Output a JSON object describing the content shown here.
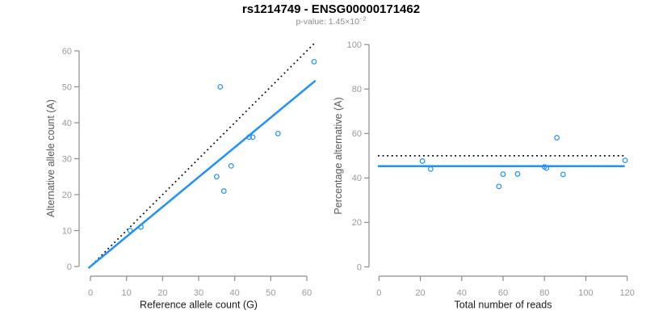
{
  "page": {
    "title": "rs1214749 - ENSG00000171462",
    "subtitle_prefix": "p-value: ",
    "p_mantissa": "1.45",
    "p_times": "×",
    "p_base": "10",
    "p_exponent": "−2"
  },
  "colors": {
    "accent": "#1E90FF",
    "line_black": "#000000",
    "axis": "#8c8c8c",
    "tick_label": "#999999",
    "axis_title_x": "#1a1a1a",
    "axis_title_y": "#595959",
    "subtitle": "#8c8c8c",
    "title": "#000000"
  },
  "chart_data": [
    {
      "type": "scatter",
      "title": "",
      "xlabel": "Reference allele count (G)",
      "ylabel": "Alternative allele count (A)",
      "xlim": [
        0,
        62
      ],
      "ylim": [
        0,
        62
      ],
      "xticks": [
        0,
        10,
        20,
        30,
        40,
        50,
        60
      ],
      "yticks": [
        0,
        10,
        20,
        30,
        40,
        50,
        60
      ],
      "grid": false,
      "legend": false,
      "points": [
        [
          11,
          10
        ],
        [
          14,
          11
        ],
        [
          35,
          25
        ],
        [
          36,
          50
        ],
        [
          37,
          21
        ],
        [
          39,
          28
        ],
        [
          44,
          36
        ],
        [
          45,
          36
        ],
        [
          52,
          37
        ],
        [
          62,
          57
        ]
      ],
      "lines": [
        {
          "name": "identity-line",
          "style": "dotted",
          "color": "#000000",
          "slope": 1,
          "intercept": 0,
          "x_range": [
            -0.5,
            62.4
          ]
        },
        {
          "name": "fit-line",
          "style": "solid",
          "color": "#1E90FF",
          "slope": 0.829,
          "intercept": 0,
          "x_range": [
            -0.5,
            62.4
          ]
        }
      ]
    },
    {
      "type": "scatter",
      "title": "",
      "xlabel": "Total number of reads",
      "ylabel": "Percentage alternative (A)",
      "xlim": [
        0,
        120
      ],
      "ylim": [
        0,
        100
      ],
      "xticks": [
        0,
        20,
        40,
        60,
        80,
        100,
        120
      ],
      "yticks": [
        0,
        20,
        40,
        60,
        80,
        100
      ],
      "grid": false,
      "legend": false,
      "points": [
        [
          21,
          47.6
        ],
        [
          25,
          44.0
        ],
        [
          58,
          36.2
        ],
        [
          60,
          41.7
        ],
        [
          67,
          41.8
        ],
        [
          80,
          45.0
        ],
        [
          81,
          44.4
        ],
        [
          86,
          58.1
        ],
        [
          89,
          41.6
        ],
        [
          119,
          47.9
        ]
      ],
      "lines": [
        {
          "name": "expected-50-line",
          "style": "dotted",
          "color": "#000000",
          "y": 50,
          "x_range": [
            -0.5,
            118.8
          ]
        },
        {
          "name": "mean-percentage-line",
          "style": "solid",
          "color": "#1E90FF",
          "y": 45.3,
          "x_range": [
            -0.5,
            118.8
          ]
        }
      ]
    }
  ]
}
